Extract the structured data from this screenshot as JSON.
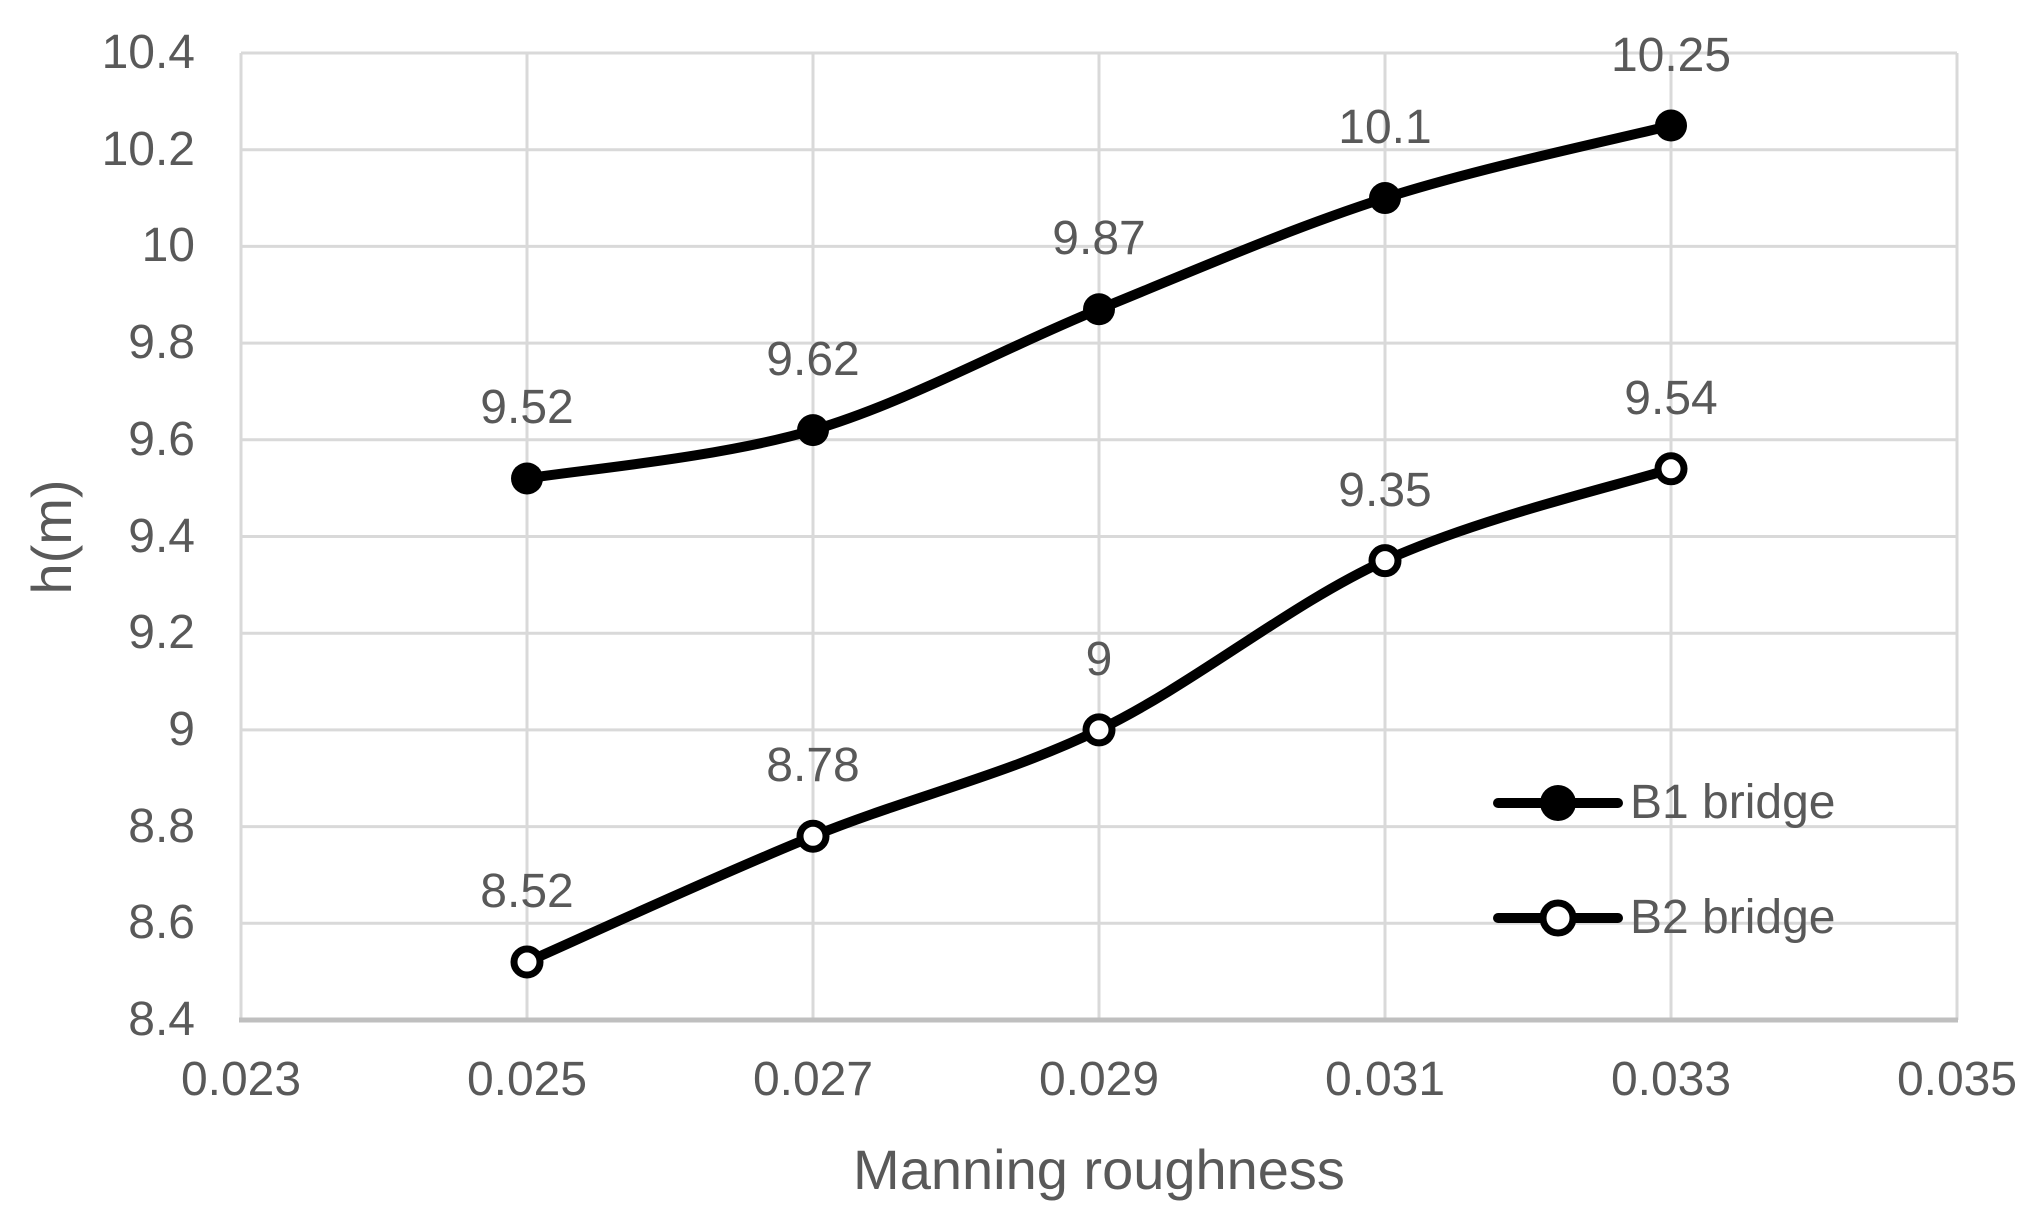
{
  "chart_data": {
    "type": "line",
    "title": "",
    "xlabel": "Manning roughness",
    "ylabel": "h(m)",
    "x": [
      0.025,
      0.027,
      0.029,
      0.031,
      0.033
    ],
    "series": [
      {
        "name": "B1 bridge",
        "marker": "filled-circle",
        "values": [
          9.52,
          9.62,
          9.87,
          10.1,
          10.25
        ],
        "labels": [
          "9.52",
          "9.62",
          "9.87",
          "10.1",
          "10.25"
        ]
      },
      {
        "name": "B2 bridge",
        "marker": "open-circle",
        "values": [
          8.52,
          8.78,
          9.0,
          9.35,
          9.54
        ],
        "labels": [
          "8.52",
          "8.78",
          "9",
          "9.35",
          "9.54"
        ]
      }
    ],
    "xlim": [
      0.023,
      0.035
    ],
    "ylim": [
      8.4,
      10.4
    ],
    "x_ticks": [
      {
        "value": 0.023,
        "label": "0.023"
      },
      {
        "value": 0.025,
        "label": "0.025"
      },
      {
        "value": 0.027,
        "label": "0.027"
      },
      {
        "value": 0.029,
        "label": "0.029"
      },
      {
        "value": 0.031,
        "label": "0.031"
      },
      {
        "value": 0.033,
        "label": "0.033"
      },
      {
        "value": 0.035,
        "label": "0.035"
      }
    ],
    "y_ticks": [
      {
        "value": 10.4,
        "label": "10.4"
      },
      {
        "value": 10.2,
        "label": "10.2"
      },
      {
        "value": 10.0,
        "label": "10"
      },
      {
        "value": 9.8,
        "label": "9.8"
      },
      {
        "value": 9.6,
        "label": "9.6"
      },
      {
        "value": 9.4,
        "label": "9.4"
      },
      {
        "value": 9.2,
        "label": "9.2"
      },
      {
        "value": 9.0,
        "label": "9"
      },
      {
        "value": 8.8,
        "label": "8.8"
      },
      {
        "value": 8.6,
        "label": "8.6"
      },
      {
        "value": 8.4,
        "label": "8.4"
      }
    ],
    "grid": true,
    "smooth_lines": true,
    "legend_position": "inside-lower-right",
    "colors": {
      "series_line": "#000000",
      "marker_fill_b1": "#000000",
      "marker_fill_b2": "#ffffff",
      "text": "#595959",
      "gridline": "#d9d9d9",
      "axis_line": "#bfbfbf",
      "background": "#ffffff"
    }
  }
}
